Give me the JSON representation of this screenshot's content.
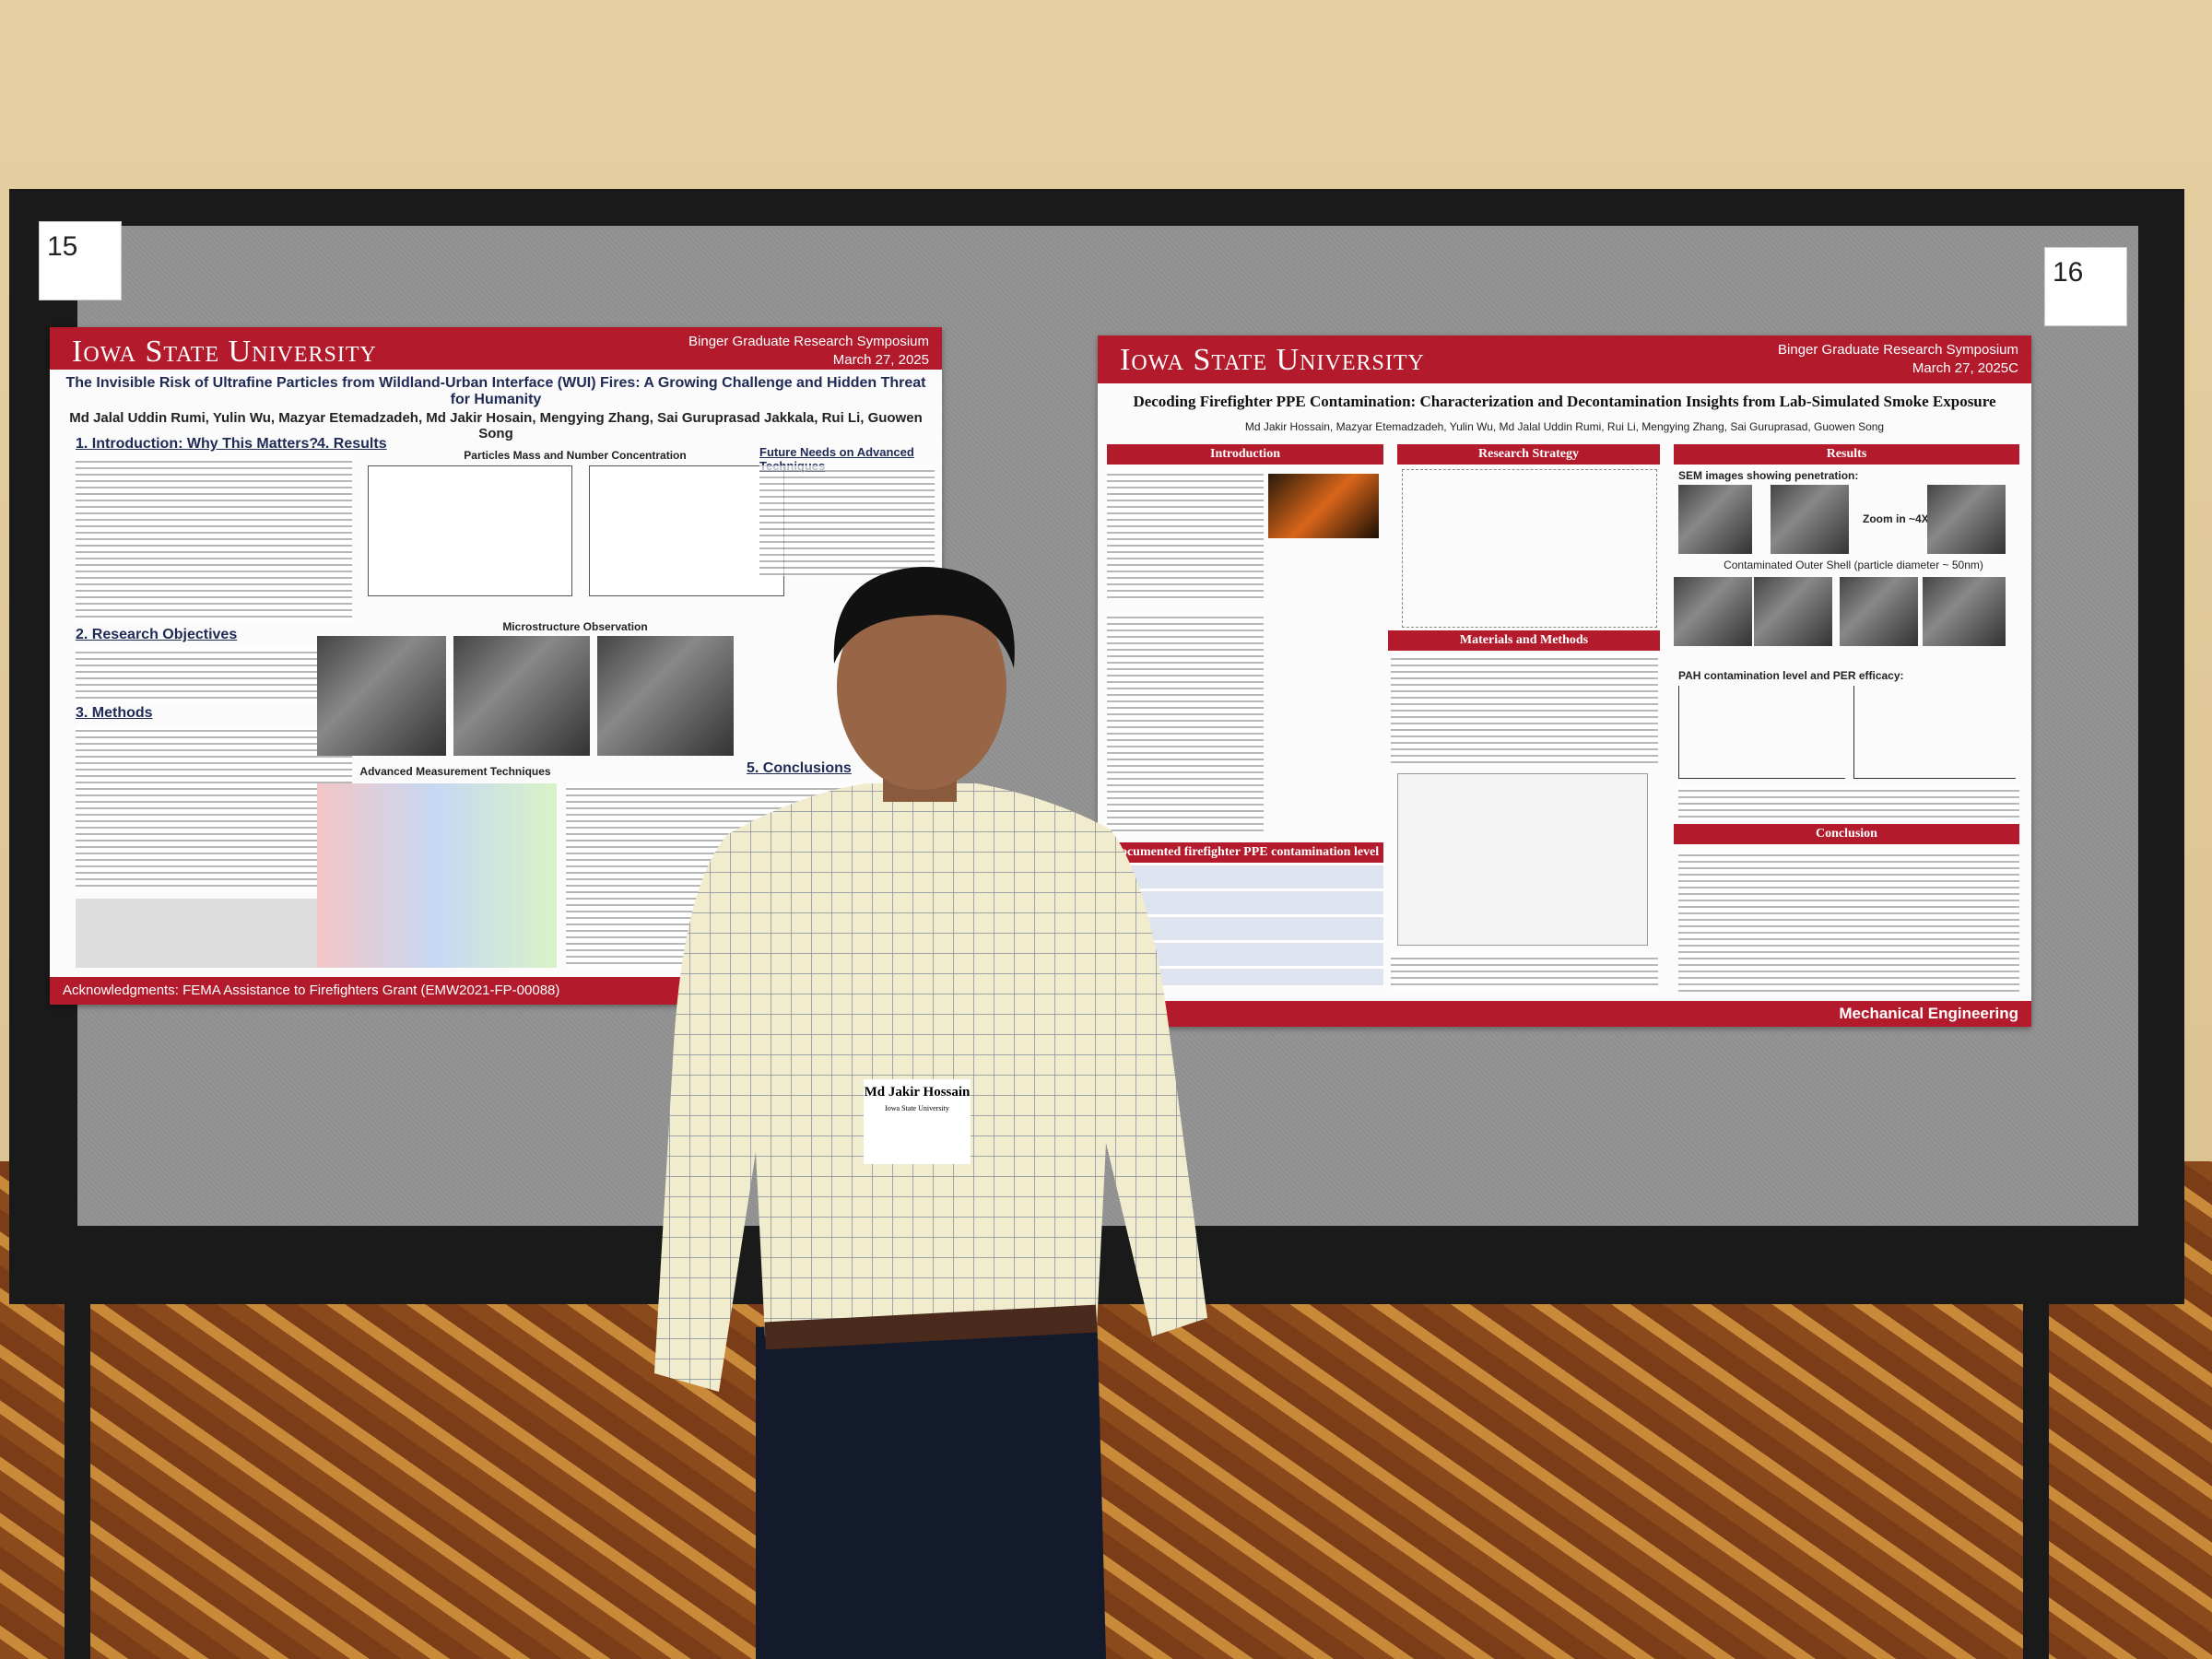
{
  "board_numbers": [
    "15",
    "16"
  ],
  "left_poster": {
    "university": "Iowa State University",
    "event": "Binger Graduate Research Symposium",
    "date": "March 27, 2025",
    "title": "The Invisible Risk of Ultrafine Particles from Wildland-Urban Interface (WUI) Fires: A Growing Challenge and Hidden Threat for Humanity",
    "authors": "Md Jalal Uddin Rumi, Yulin Wu, Mazyar Etemadzadeh, Md Jakir Hosain, Mengying Zhang, Sai Guruprasad Jakkala, Rui Li, Guowen Song",
    "sections": [
      "1. Introduction: Why This Matters?",
      "2. Research Objectives",
      "3. Methods",
      "4. Results",
      "Future Needs on Advanced Techniques",
      "5. Conclusions"
    ],
    "figures": [
      "Particles Mass and Number Concentration",
      "Microstructure Observation",
      "Advanced Measurement Techniques"
    ],
    "acknowledgments": "Acknowledgments: FEMA Assistance to Firefighters Grant (EMW2021-FP-00088)"
  },
  "right_poster": {
    "university": "Iowa State University",
    "event": "Binger Graduate Research Symposium",
    "date": "March 27, 2025C",
    "title": "Decoding Firefighter PPE Contamination: Characterization and Decontamination Insights from Lab-Simulated Smoke Exposure",
    "authors": "Md Jakir Hossain, Mazyar Etemadzadeh, Yulin Wu, Md Jalal Uddin Rumi, Rui Li, Mengying Zhang, Sai Guruprasad, Guowen Song",
    "sections": [
      "Introduction",
      "Research Strategy",
      "Results",
      "Materials and Methods",
      "Documented firefighter PPE contamination level",
      "Conclusion"
    ],
    "captions": [
      "SEM images showing penetration:",
      "Zoom in ~4X",
      "Contaminated Outer Shell (particle diameter ~ 50nm)",
      "PAH contamination level and PER efficacy:"
    ],
    "footer": "Mechanical Engineering"
  },
  "badge": {
    "name": "Md Jakir Hossain",
    "affiliation": "Iowa State University"
  }
}
